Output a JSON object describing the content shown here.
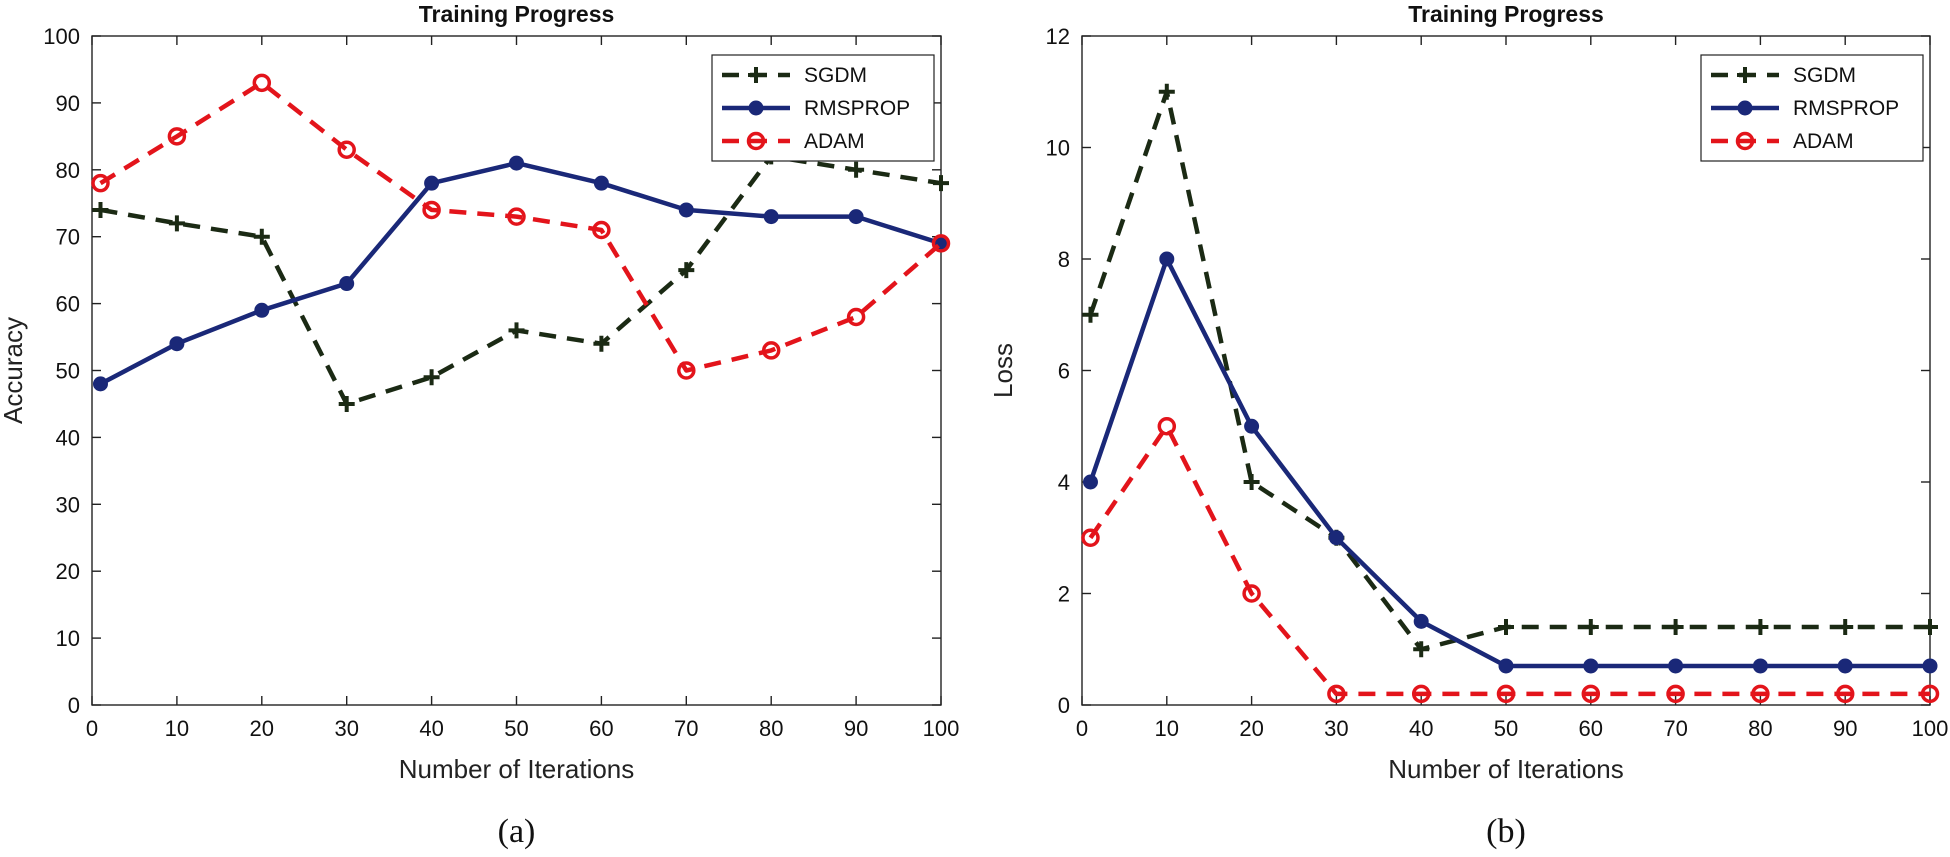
{
  "chart_data": [
    {
      "type": "line",
      "title": "Training Progress",
      "xlabel": "Number of Iterations",
      "ylabel": "Accuracy",
      "caption": "(a)",
      "x": [
        1,
        10,
        20,
        30,
        40,
        50,
        60,
        70,
        80,
        90,
        100
      ],
      "xlim": [
        0,
        100
      ],
      "ylim": [
        0,
        100
      ],
      "xticks": [
        0,
        10,
        20,
        30,
        40,
        50,
        60,
        70,
        80,
        90,
        100
      ],
      "yticks": [
        0,
        10,
        20,
        30,
        40,
        50,
        60,
        70,
        80,
        90,
        100
      ],
      "grid": false,
      "legend_position": "top-right",
      "series": [
        {
          "name": "SGDM",
          "color": "#1b2a14",
          "dash": "dashed",
          "marker": "plus",
          "values": [
            74,
            72,
            70,
            45,
            49,
            56,
            54,
            65,
            82,
            80,
            78
          ]
        },
        {
          "name": "RMSPROP",
          "color": "#1a2878",
          "dash": "solid",
          "marker": "filled-circle",
          "values": [
            48,
            54,
            59,
            63,
            78,
            81,
            78,
            74,
            73,
            73,
            69
          ]
        },
        {
          "name": "ADAM",
          "color": "#e3141b",
          "dash": "dashed",
          "marker": "open-circle",
          "values": [
            78,
            85,
            93,
            83,
            74,
            73,
            71,
            50,
            53,
            58,
            69
          ]
        }
      ]
    },
    {
      "type": "line",
      "title": "Training Progress",
      "xlabel": "Number of Iterations",
      "ylabel": "Loss",
      "caption": "(b)",
      "x": [
        1,
        10,
        20,
        30,
        40,
        50,
        60,
        70,
        80,
        90,
        100
      ],
      "xlim": [
        0,
        100
      ],
      "ylim": [
        0,
        12
      ],
      "xticks": [
        0,
        10,
        20,
        30,
        40,
        50,
        60,
        70,
        80,
        90,
        100
      ],
      "yticks": [
        0,
        2,
        4,
        6,
        8,
        10,
        12
      ],
      "grid": false,
      "legend_position": "top-right",
      "series": [
        {
          "name": "SGDM",
          "color": "#1b2a14",
          "dash": "dashed",
          "marker": "plus",
          "values": [
            7,
            11,
            4,
            3,
            1,
            1.4,
            1.4,
            1.4,
            1.4,
            1.4,
            1.4
          ]
        },
        {
          "name": "RMSPROP",
          "color": "#1a2878",
          "dash": "solid",
          "marker": "filled-circle",
          "values": [
            4,
            8,
            5,
            3,
            1.5,
            0.7,
            0.7,
            0.7,
            0.7,
            0.7,
            0.7
          ]
        },
        {
          "name": "ADAM",
          "color": "#e3141b",
          "dash": "dashed",
          "marker": "open-circle",
          "values": [
            3,
            5,
            2,
            0.2,
            0.2,
            0.2,
            0.2,
            0.2,
            0.2,
            0.2,
            0.2
          ]
        }
      ]
    }
  ]
}
